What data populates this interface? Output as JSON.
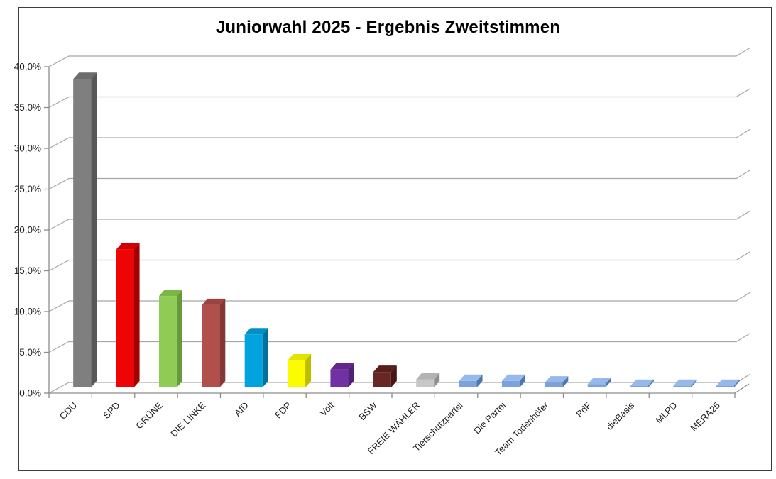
{
  "chart_data": {
    "type": "bar",
    "style": "3d-column",
    "title": "Juniorwahl 2025 - Ergebnis Zweitstimmen",
    "unit": "%",
    "decimal_format": "comma",
    "grid": true,
    "legend": "none",
    "ylim": [
      0,
      40
    ],
    "y_tick_step": 5,
    "y_tick_labels": [
      "0,0%",
      "5,0%",
      "10,0%",
      "15,0%",
      "20,0%",
      "25,0%",
      "30,0%",
      "35,0%",
      "40,0%"
    ],
    "categories": [
      "CDU",
      "SPD",
      "GRÜNE",
      "DIE LINKE",
      "AfD",
      "FDP",
      "Volt",
      "BSW",
      "FREIE WÄHLER",
      "Tierschutzpartei",
      "Die Partei",
      "Team Todenhöfer",
      "PdF",
      "dieBasis",
      "MLPD",
      "MERA25"
    ],
    "values": [
      37.8,
      16.9,
      11.2,
      10.1,
      6.5,
      3.3,
      2.2,
      1.9,
      1.0,
      0.8,
      0.8,
      0.6,
      0.4,
      0.2,
      0.2,
      0.2
    ],
    "bar_colors": [
      {
        "front": "#7F7F7F",
        "top": "#6C6C6C",
        "side": "#575757"
      },
      {
        "front": "#EE0404",
        "top": "#D60000",
        "side": "#A30000"
      },
      {
        "front": "#8FCB55",
        "top": "#7CB745",
        "side": "#679A38"
      },
      {
        "front": "#B04F4B",
        "top": "#9C4340",
        "side": "#843734"
      },
      {
        "front": "#00A3DE",
        "top": "#0090C6",
        "side": "#00719B"
      },
      {
        "front": "#FCFC00",
        "top": "#E3E300",
        "side": "#BDBD00"
      },
      {
        "front": "#7231A3",
        "top": "#63288E",
        "side": "#512174"
      },
      {
        "front": "#682624",
        "top": "#571E1C",
        "side": "#451716"
      },
      {
        "front": "#C7C7C7",
        "top": "#B3B3B3",
        "side": "#8E8E8E"
      },
      {
        "front": "#7CA2DE",
        "top": "#97B9EA",
        "side": "#4F76A8"
      },
      {
        "front": "#7CA2DE",
        "top": "#97B9EA",
        "side": "#4F76A8"
      },
      {
        "front": "#7CA2DE",
        "top": "#97B9EA",
        "side": "#4F76A8"
      },
      {
        "front": "#7CA2DE",
        "top": "#97B9EA",
        "side": "#4F76A8"
      },
      {
        "front": "#7CA2DE",
        "top": "#97B9EA",
        "side": "#4F76A8"
      },
      {
        "front": "#7CA2DE",
        "top": "#97B9EA",
        "side": "#4F76A8"
      },
      {
        "front": "#7CA2DE",
        "top": "#97B9EA",
        "side": "#4F76A8"
      }
    ]
  },
  "colors": {
    "background": "#FFFFFF",
    "frame_border": "#3D3D3D",
    "gridline": "#A6A6A6",
    "axis": "#8C8C8C",
    "tick": "#8C8C8C",
    "label_text": "#1F1F1F",
    "title_text": "#000000"
  }
}
